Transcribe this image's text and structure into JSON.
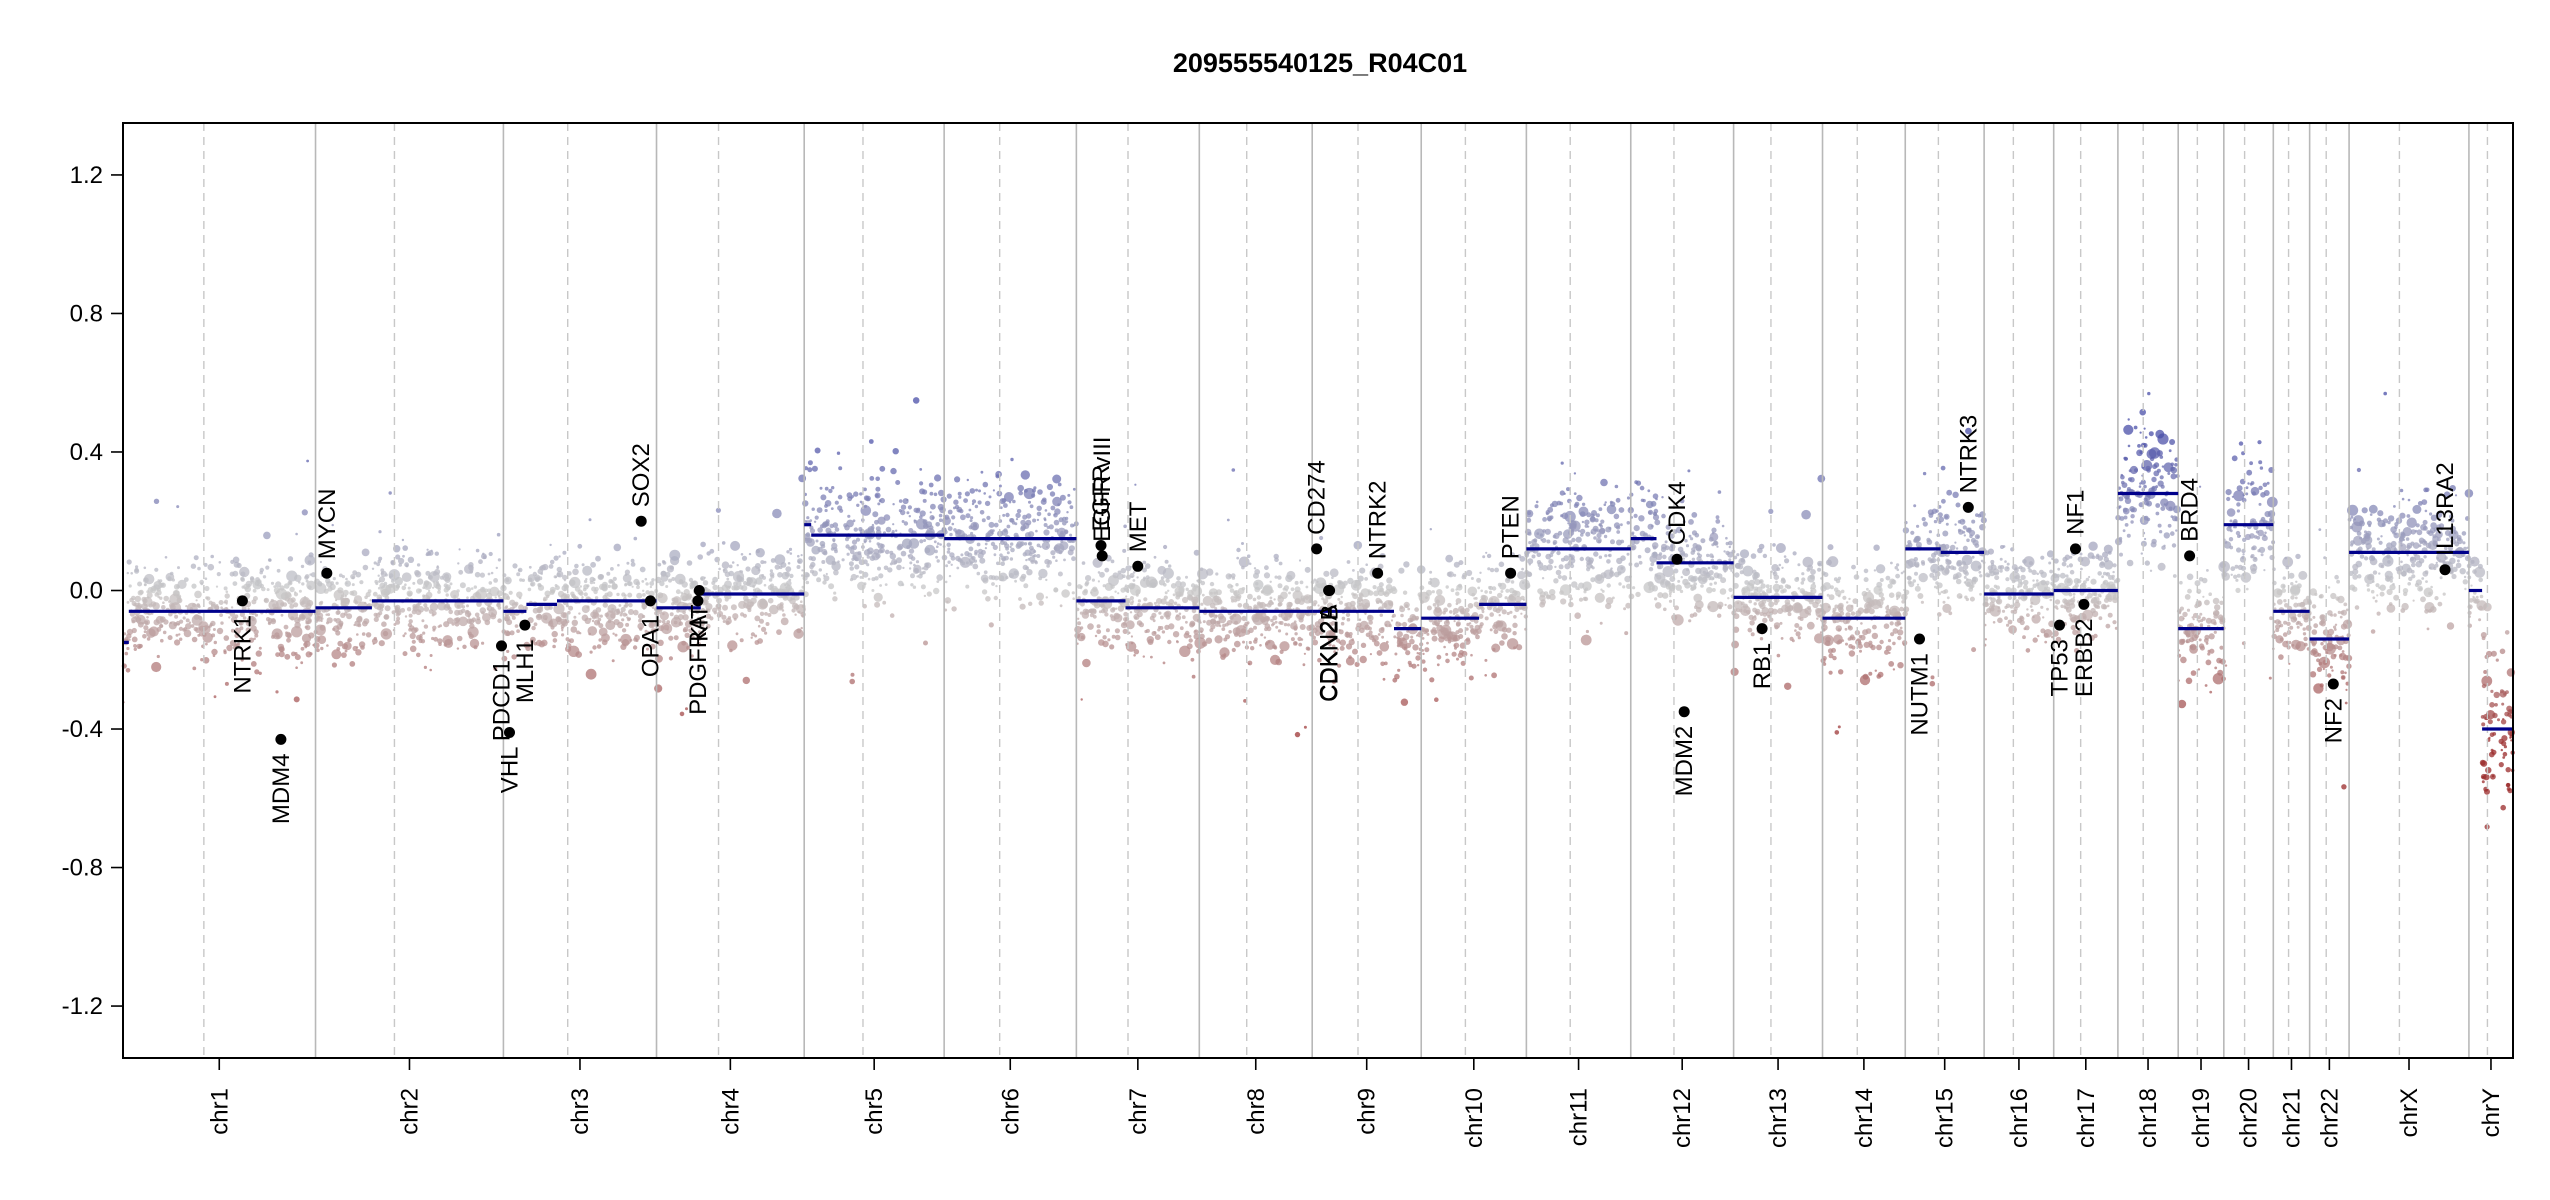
{
  "chart_data": {
    "type": "scatter",
    "title": "209555540125_R04C01",
    "xlabel": "",
    "ylabel": "",
    "ylim": [
      -1.35,
      1.35
    ],
    "y_ticks": [
      "1.2",
      "0.8",
      "0.4",
      "0.0",
      "-0.4",
      "-0.8",
      "-1.2"
    ],
    "y_tick_values": [
      1.2,
      0.8,
      0.4,
      0.0,
      -0.4,
      -0.8,
      -1.2
    ],
    "grid": false,
    "colors": {
      "gain": "#4a4fa8",
      "loss": "#9a2a2a",
      "neutral": "#c8c8c8",
      "segment": "#00008b",
      "boundary": "#b5b5b5"
    },
    "chromosomes": [
      {
        "name": "chr1",
        "rel": 249,
        "segments": [
          [
            0,
            0.03,
            -0.15
          ],
          [
            0.03,
            1,
            -0.06
          ]
        ]
      },
      {
        "name": "chr2",
        "rel": 243,
        "segments": [
          [
            0,
            0.3,
            -0.05
          ],
          [
            0.3,
            1,
            -0.03
          ]
        ]
      },
      {
        "name": "chr3",
        "rel": 198,
        "segments": [
          [
            0,
            0.15,
            -0.06
          ],
          [
            0.15,
            0.35,
            -0.04
          ],
          [
            0.35,
            1,
            -0.03
          ]
        ]
      },
      {
        "name": "chr4",
        "rel": 191,
        "segments": [
          [
            0,
            0.3,
            -0.05
          ],
          [
            0.3,
            1,
            -0.01
          ]
        ]
      },
      {
        "name": "chr5",
        "rel": 181,
        "segments": [
          [
            0,
            0.05,
            0.19
          ],
          [
            0.05,
            1,
            0.16
          ]
        ]
      },
      {
        "name": "chr6",
        "rel": 171,
        "segments": [
          [
            0,
            1,
            0.15
          ]
        ]
      },
      {
        "name": "chr7",
        "rel": 159,
        "segments": [
          [
            0,
            0.4,
            -0.03
          ],
          [
            0.4,
            1,
            -0.05
          ]
        ]
      },
      {
        "name": "chr8",
        "rel": 146,
        "segments": [
          [
            0,
            1,
            -0.06
          ]
        ]
      },
      {
        "name": "chr9",
        "rel": 141,
        "segments": [
          [
            0,
            0.75,
            -0.06
          ],
          [
            0.75,
            1,
            -0.11
          ]
        ]
      },
      {
        "name": "chr10",
        "rel": 136,
        "segments": [
          [
            0,
            0.55,
            -0.08
          ],
          [
            0.55,
            1,
            -0.04
          ]
        ]
      },
      {
        "name": "chr11",
        "rel": 135,
        "segments": [
          [
            0,
            1,
            0.12
          ]
        ]
      },
      {
        "name": "chr12",
        "rel": 133,
        "segments": [
          [
            0,
            0.25,
            0.15
          ],
          [
            0.25,
            1,
            0.08
          ]
        ]
      },
      {
        "name": "chr13",
        "rel": 115,
        "segments": [
          [
            0,
            1,
            -0.02
          ]
        ]
      },
      {
        "name": "chr14",
        "rel": 107,
        "segments": [
          [
            0,
            1,
            -0.08
          ]
        ]
      },
      {
        "name": "chr15",
        "rel": 102,
        "segments": [
          [
            0,
            0.45,
            0.12
          ],
          [
            0.45,
            1,
            0.11
          ]
        ]
      },
      {
        "name": "chr16",
        "rel": 90,
        "segments": [
          [
            0,
            1,
            -0.01
          ]
        ]
      },
      {
        "name": "chr17",
        "rel": 83,
        "segments": [
          [
            0,
            1,
            0.0
          ]
        ]
      },
      {
        "name": "chr18",
        "rel": 78,
        "segments": [
          [
            0,
            1,
            0.28
          ]
        ]
      },
      {
        "name": "chr19",
        "rel": 59,
        "segments": [
          [
            0,
            1,
            -0.11
          ]
        ]
      },
      {
        "name": "chr20",
        "rel": 64,
        "segments": [
          [
            0,
            1,
            0.19
          ]
        ]
      },
      {
        "name": "chr21",
        "rel": 47,
        "segments": [
          [
            0,
            1,
            -0.06
          ]
        ]
      },
      {
        "name": "chr22",
        "rel": 51,
        "segments": [
          [
            0,
            1,
            -0.14
          ]
        ]
      },
      {
        "name": "chrX",
        "rel": 155,
        "segments": [
          [
            0,
            1,
            0.11
          ]
        ]
      },
      {
        "name": "chrY",
        "rel": 57,
        "segments": [
          [
            0,
            0.3,
            0.0
          ],
          [
            0.3,
            1,
            -0.4
          ]
        ]
      }
    ],
    "genes": [
      {
        "name": "NTRK1",
        "chr": "chr1",
        "pos": 0.62,
        "y": -0.03
      },
      {
        "name": "MDM4",
        "chr": "chr1",
        "pos": 0.82,
        "y": -0.43
      },
      {
        "name": "MYCN",
        "chr": "chr2",
        "pos": 0.06,
        "y": 0.05
      },
      {
        "name": "PDCD1",
        "chr": "chr2",
        "pos": 0.99,
        "y": -0.16
      },
      {
        "name": "VHL",
        "chr": "chr3",
        "pos": 0.04,
        "y": -0.41
      },
      {
        "name": "MLH1",
        "chr": "chr3",
        "pos": 0.14,
        "y": -0.1
      },
      {
        "name": "SOX2",
        "chr": "chr3",
        "pos": 0.9,
        "y": 0.2
      },
      {
        "name": "OPA1",
        "chr": "chr3",
        "pos": 0.96,
        "y": -0.03
      },
      {
        "name": "KIT",
        "chr": "chr4",
        "pos": 0.29,
        "y": 0.0
      },
      {
        "name": "PDGFRA",
        "chr": "chr4",
        "pos": 0.28,
        "y": -0.03
      },
      {
        "name": "EGFR",
        "chr": "chr7",
        "pos": 0.2,
        "y": 0.13
      },
      {
        "name": "EGFR vIII",
        "chr": "chr7",
        "pos": 0.21,
        "y": 0.1
      },
      {
        "name": "MET",
        "chr": "chr7",
        "pos": 0.5,
        "y": 0.07
      },
      {
        "name": "CD274",
        "chr": "chr9",
        "pos": 0.04,
        "y": 0.12
      },
      {
        "name": "CDKN2A",
        "chr": "chr9",
        "pos": 0.15,
        "y": 0.0
      },
      {
        "name": "CDKN2B",
        "chr": "chr9",
        "pos": 0.16,
        "y": 0.0
      },
      {
        "name": "NTRK2",
        "chr": "chr9",
        "pos": 0.6,
        "y": 0.05
      },
      {
        "name": "PTEN",
        "chr": "chr10",
        "pos": 0.85,
        "y": 0.05
      },
      {
        "name": "CDK4",
        "chr": "chr12",
        "pos": 0.45,
        "y": 0.09
      },
      {
        "name": "MDM2",
        "chr": "chr12",
        "pos": 0.52,
        "y": -0.35
      },
      {
        "name": "RB1",
        "chr": "chr13",
        "pos": 0.32,
        "y": -0.11
      },
      {
        "name": "NUTM1",
        "chr": "chr15",
        "pos": 0.18,
        "y": -0.14
      },
      {
        "name": "NTRK3",
        "chr": "chr15",
        "pos": 0.8,
        "y": 0.24
      },
      {
        "name": "TP53",
        "chr": "chr17",
        "pos": 0.09,
        "y": -0.1
      },
      {
        "name": "NF1",
        "chr": "chr17",
        "pos": 0.34,
        "y": 0.12
      },
      {
        "name": "ERBB2",
        "chr": "chr17",
        "pos": 0.47,
        "y": -0.04
      },
      {
        "name": "BRD4",
        "chr": "chr19",
        "pos": 0.25,
        "y": 0.1
      },
      {
        "name": "NF2",
        "chr": "chr22",
        "pos": 0.6,
        "y": -0.27
      },
      {
        "name": "IL13RA2",
        "chr": "chrX",
        "pos": 0.8,
        "y": 0.06
      }
    ]
  }
}
